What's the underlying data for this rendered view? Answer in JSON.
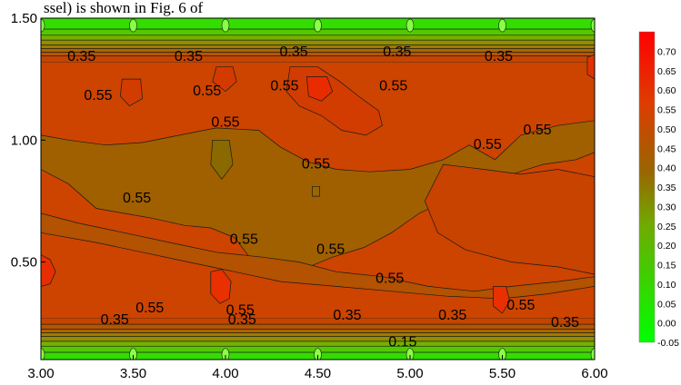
{
  "chart_data": {
    "type": "heatmap",
    "subtype": "filled-contour",
    "top_text": "ssel) is shown in Fig. 6 of",
    "x_ticks": [
      "3.00",
      "3.50",
      "4.00",
      "4.50",
      "5.00",
      "5.50",
      "6.00"
    ],
    "y_ticks": [
      "1.50",
      "1.00",
      "0.50"
    ],
    "xlim": [
      3.0,
      6.0
    ],
    "ylim": [
      0.1,
      1.5
    ],
    "colorbar": {
      "ticks": [
        "0.70",
        "0.65",
        "0.60",
        "0.55",
        "0.50",
        "0.45",
        "0.40",
        "0.35",
        "0.30",
        "0.25",
        "0.20",
        "0.15",
        "0.10",
        "0.05",
        "0.00",
        "-0.05"
      ],
      "range": [
        -0.05,
        0.75
      ],
      "colors": {
        "high": "#ff0000",
        "mid": "#996600",
        "low": "#00ff00"
      }
    },
    "contour_labels": [
      {
        "text": "0.35",
        "x": 3.22,
        "y": 1.34
      },
      {
        "text": "0.35",
        "x": 3.8,
        "y": 1.34
      },
      {
        "text": "0.35",
        "x": 4.37,
        "y": 1.36
      },
      {
        "text": "0.35",
        "x": 4.93,
        "y": 1.36
      },
      {
        "text": "0.35",
        "x": 5.48,
        "y": 1.34
      },
      {
        "text": "0.55",
        "x": 3.31,
        "y": 1.18
      },
      {
        "text": "0.55",
        "x": 3.9,
        "y": 1.2
      },
      {
        "text": "0.55",
        "x": 4.32,
        "y": 1.22
      },
      {
        "text": "0.55",
        "x": 4.91,
        "y": 1.22
      },
      {
        "text": "0.55",
        "x": 4.0,
        "y": 1.07
      },
      {
        "text": "0.55",
        "x": 5.69,
        "y": 1.04
      },
      {
        "text": "0.55",
        "x": 5.42,
        "y": 0.98
      },
      {
        "text": "0.55",
        "x": 4.49,
        "y": 0.9
      },
      {
        "text": "0.55",
        "x": 3.52,
        "y": 0.76
      },
      {
        "text": "0.55",
        "x": 4.1,
        "y": 0.59
      },
      {
        "text": "0.55",
        "x": 4.57,
        "y": 0.55
      },
      {
        "text": "0.55",
        "x": 4.89,
        "y": 0.43
      },
      {
        "text": "0.55",
        "x": 3.59,
        "y": 0.31
      },
      {
        "text": "0.55",
        "x": 4.08,
        "y": 0.3
      },
      {
        "text": "0.55",
        "x": 5.6,
        "y": 0.32
      },
      {
        "text": "0.35",
        "x": 3.4,
        "y": 0.26
      },
      {
        "text": "0.35",
        "x": 4.09,
        "y": 0.26
      },
      {
        "text": "0.35",
        "x": 4.66,
        "y": 0.28
      },
      {
        "text": "0.35",
        "x": 5.23,
        "y": 0.28
      },
      {
        "text": "0.35",
        "x": 5.84,
        "y": 0.25
      },
      {
        "text": "0.15",
        "x": 4.96,
        "y": 0.17
      }
    ],
    "peaks": [
      {
        "x": 3.02,
        "y": 0.46,
        "value": 0.72
      },
      {
        "x": 3.97,
        "y": 0.38,
        "value": 0.7
      },
      {
        "x": 5.49,
        "y": 0.33,
        "value": 0.68
      },
      {
        "x": 4.5,
        "y": 1.22,
        "value": 0.7
      },
      {
        "x": 3.49,
        "y": 1.2,
        "value": 0.66
      },
      {
        "x": 3.99,
        "y": 1.27,
        "value": 0.64
      },
      {
        "x": 6.0,
        "y": 1.31,
        "value": 0.66
      },
      {
        "x": 5.85,
        "y": 0.62,
        "value": 0.64
      },
      {
        "x": 4.7,
        "y": 1.08,
        "value": 0.62
      },
      {
        "x": 3.2,
        "y": 0.48,
        "value": 0.63
      }
    ],
    "troughs": [
      {
        "x": 3.98,
        "y": 0.92,
        "value": 0.46
      },
      {
        "x": 4.49,
        "y": 0.79,
        "value": 0.5
      }
    ]
  }
}
